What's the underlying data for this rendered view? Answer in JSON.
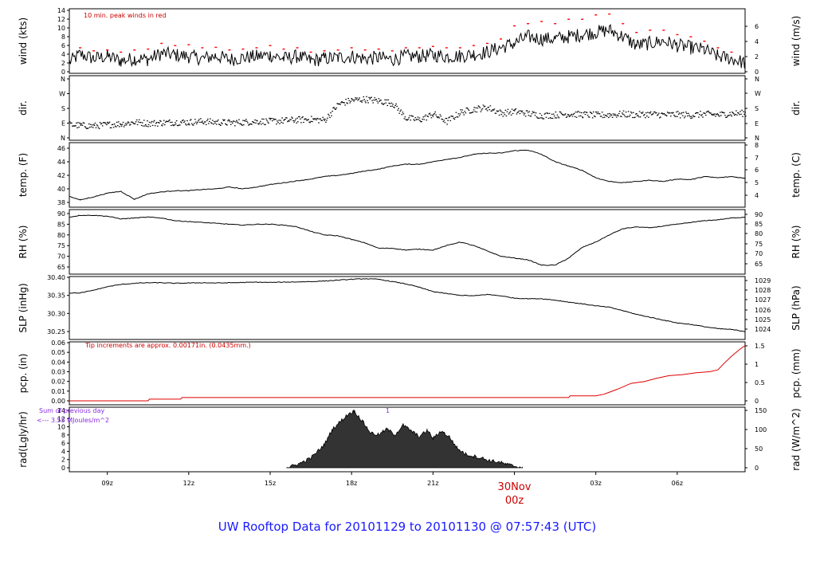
{
  "footer": {
    "title": "UW Rooftop Data for 20101129  to  20101130 @ 07:57:43  (UTC)"
  },
  "x_axis": {
    "tick_labels": [
      "09z",
      "12z",
      "15z",
      "18z",
      "21z",
      "03z",
      "06z"
    ],
    "day_label": "30Nov",
    "day_sub": "00z"
  },
  "colors": {
    "trace": "#000000",
    "peak": "#ff0000",
    "pcp": "#e00000",
    "annotation": "#cc0000",
    "radtext": "#8a2be2",
    "title": "#1a1aff",
    "rad_fill": "#333333"
  },
  "chart_data": [
    {
      "id": "wind",
      "type": "line",
      "ylabel_left": "wind (kts)",
      "ylabel_right": "wind (m/s)",
      "left_ticks": [
        "0",
        "2",
        "4",
        "6",
        "8",
        "10",
        "12",
        "14"
      ],
      "right_ticks": [
        "0",
        "2",
        "4",
        "6"
      ],
      "ylim": [
        0,
        14
      ],
      "annotation": "10 min. peak winds in red",
      "series": [
        {
          "role": "wind",
          "x": [
            7.6,
            8,
            8.5,
            9,
            9.5,
            10,
            10.5,
            11,
            11.5,
            12,
            12.5,
            13,
            13.5,
            14,
            14.5,
            15,
            15.5,
            16,
            16.5,
            17,
            17.5,
            18,
            18.5,
            19,
            19.5,
            20,
            20.5,
            21,
            21.5,
            22,
            22.5,
            23,
            23.5,
            24,
            24.5,
            25,
            25.5,
            26,
            26.5,
            27,
            27.5,
            28,
            28.5,
            29,
            29.5,
            30,
            30.5,
            31,
            31.5,
            32,
            32.5,
            31.6
          ],
          "y": [
            2.2,
            4.0,
            3.0,
            3.5,
            2.5,
            3.0,
            2.8,
            4.2,
            3.8,
            3.5,
            3.0,
            3.6,
            2.8,
            3.2,
            3.5,
            3.8,
            3.0,
            3.5,
            2.5,
            3.0,
            3.2,
            3.5,
            3.0,
            3.2,
            2.8,
            3.5,
            3.5,
            3.8,
            3.5,
            3.6,
            4.0,
            4.5,
            5.5,
            6.5,
            8.0,
            7.5,
            7.5,
            8.0,
            8.5,
            9.0,
            9.5,
            8.0,
            6.0,
            6.5,
            7.0,
            6.0,
            5.5,
            5.0,
            3.5,
            3.0,
            2.0,
            2.5
          ]
        },
        {
          "role": "peak",
          "x": [
            8,
            8.5,
            9,
            9.5,
            10,
            10.5,
            11,
            11.5,
            12,
            12.5,
            13,
            13.5,
            14,
            14.5,
            15,
            15.5,
            16,
            16.5,
            17,
            17.5,
            18,
            18.5,
            19,
            19.5,
            20,
            20.5,
            21,
            21.5,
            22,
            22.5,
            23,
            23.5,
            24,
            24.5,
            25,
            25.5,
            26,
            26.5,
            27,
            27.5,
            28,
            28.5,
            29,
            29.5,
            30,
            30.5,
            31,
            31.5,
            32
          ],
          "y": [
            5.5,
            4.8,
            5.0,
            4.5,
            5.0,
            5.2,
            6.5,
            6.0,
            6.2,
            5.5,
            5.6,
            5.0,
            5.2,
            5.5,
            6.0,
            5.2,
            5.5,
            4.5,
            4.8,
            5.0,
            5.5,
            5.0,
            5.2,
            4.8,
            5.5,
            5.5,
            5.8,
            5.5,
            5.5,
            6.0,
            6.5,
            7.5,
            10.5,
            11.0,
            11.5,
            11.0,
            12.0,
            12.0,
            13.0,
            13.2,
            11.0,
            9.0,
            9.5,
            9.5,
            8.5,
            8.0,
            7.0,
            5.5,
            4.5
          ]
        }
      ]
    },
    {
      "id": "dir",
      "type": "scatter",
      "ylabel_left": "dir.",
      "ylabel_right": "dir.",
      "left_ticks": [
        "N",
        "E",
        "S",
        "W",
        "N"
      ],
      "right_ticks": [
        "N",
        "E",
        "S",
        "W",
        "N"
      ],
      "ylim": [
        0,
        360
      ],
      "x": [
        7.6,
        8,
        8.5,
        9,
        9.5,
        10,
        10.5,
        11,
        11.5,
        12,
        12.5,
        13,
        13.5,
        14,
        14.5,
        15,
        15.5,
        16,
        16.5,
        17,
        17.5,
        18,
        18.5,
        19,
        19.5,
        20,
        20.5,
        21,
        21.5,
        22,
        22.5,
        23,
        23.5,
        24,
        24.5,
        25,
        25.5,
        26,
        26.5,
        27,
        27.5,
        28,
        28.5,
        29,
        29.5,
        30,
        30.5,
        31,
        31.5,
        32,
        32.5
      ],
      "y": [
        80,
        75,
        72,
        80,
        85,
        95,
        88,
        92,
        95,
        95,
        100,
        95,
        92,
        95,
        100,
        100,
        105,
        110,
        112,
        108,
        205,
        230,
        235,
        225,
        210,
        120,
        110,
        145,
        100,
        155,
        175,
        185,
        150,
        160,
        148,
        135,
        140,
        145,
        142,
        138,
        140,
        145,
        140,
        145,
        140,
        142,
        138,
        145,
        140,
        148,
        150
      ]
    },
    {
      "id": "temp",
      "type": "line",
      "ylabel_left": "temp. (F)",
      "ylabel_right": "temp. (C)",
      "left_ticks": [
        "38",
        "40",
        "42",
        "44",
        "46"
      ],
      "right_ticks": [
        "4",
        "5",
        "6",
        "7",
        "8"
      ],
      "ylim": [
        37.8,
        46.6
      ],
      "x": [
        7.6,
        8,
        8.5,
        9,
        9.5,
        10,
        10.5,
        11,
        11.5,
        12,
        12.5,
        13,
        13.5,
        14,
        14.5,
        15,
        15.5,
        16,
        16.5,
        17,
        17.5,
        18,
        18.5,
        19,
        19.5,
        20,
        20.5,
        21,
        21.5,
        22,
        22.5,
        23,
        23.5,
        24,
        24.5,
        25,
        25.5,
        26,
        26.5,
        27,
        27.5,
        28,
        28.5,
        29,
        29.5,
        30,
        30.5,
        31,
        31.5,
        32,
        32.5
      ],
      "y": [
        38.8,
        38.2,
        38.7,
        39.3,
        39.6,
        38.3,
        39.2,
        39.5,
        39.7,
        39.7,
        39.9,
        40.0,
        40.3,
        40.0,
        40.3,
        40.7,
        41.0,
        41.3,
        41.6,
        42.0,
        42.2,
        42.5,
        42.9,
        43.2,
        43.7,
        44.0,
        44.0,
        44.4,
        44.8,
        45.1,
        45.6,
        45.8,
        45.8,
        46.2,
        46.3,
        45.6,
        44.4,
        43.7,
        43.0,
        41.8,
        41.2,
        41.0,
        41.2,
        41.4,
        41.2,
        41.6,
        41.5,
        42.0,
        41.8,
        42.0,
        41.7
      ]
    },
    {
      "id": "rh",
      "type": "line",
      "ylabel_left": "RH (%)",
      "ylabel_right": "RH (%)",
      "left_ticks": [
        "65",
        "70",
        "75",
        "80",
        "85",
        "90"
      ],
      "right_ticks": [
        "65",
        "70",
        "75",
        "80",
        "85",
        "90"
      ],
      "ylim": [
        62,
        92
      ],
      "x": [
        7.6,
        8,
        8.5,
        9,
        9.5,
        10,
        10.5,
        11,
        11.5,
        12,
        12.5,
        13,
        13.5,
        14,
        14.5,
        15,
        15.5,
        16,
        16.5,
        17,
        17.5,
        18,
        18.5,
        19,
        19.5,
        20,
        20.5,
        21,
        21.5,
        22,
        22.5,
        23,
        23.5,
        24,
        24.5,
        25,
        25.5,
        26,
        26.5,
        27,
        27.5,
        28,
        28.5,
        29,
        29.5,
        30,
        30.5,
        31,
        31.5,
        32,
        32.5
      ],
      "y": [
        90,
        91,
        91,
        90.5,
        89,
        89.5,
        90,
        89.5,
        88,
        87.5,
        87,
        86.5,
        86,
        85.5,
        86,
        86,
        85.5,
        84.5,
        82,
        80,
        79.5,
        77.5,
        75.5,
        72.5,
        72.5,
        71.5,
        72,
        71.5,
        74,
        76,
        74,
        71,
        68,
        67,
        66,
        63,
        63,
        67,
        73,
        76,
        80,
        83.5,
        84.5,
        84,
        85,
        86,
        87,
        88,
        88.5,
        89.5,
        90
      ]
    },
    {
      "id": "slp",
      "type": "line",
      "ylabel_left": "SLP (inHg)",
      "ylabel_right": "SLP (hPa)",
      "left_ticks": [
        "30.25",
        "30.30",
        "30.35",
        "30.40"
      ],
      "right_ticks": [
        "1024",
        "1025",
        "1026",
        "1027",
        "1028",
        "1029"
      ],
      "ylim": [
        30.215,
        30.405
      ],
      "x": [
        7.6,
        8,
        8.5,
        9,
        9.5,
        10,
        10.5,
        11,
        11.5,
        12,
        12.5,
        13,
        13.5,
        14,
        14.5,
        15,
        15.5,
        16,
        16.5,
        17,
        17.5,
        18,
        18.5,
        19,
        19.5,
        20,
        20.5,
        21,
        21.5,
        22,
        22.5,
        23,
        23.5,
        24,
        24.5,
        25,
        25.5,
        26,
        26.5,
        27,
        27.5,
        28,
        28.5,
        29,
        29.5,
        30,
        30.5,
        31,
        31.5,
        32,
        32.5
      ],
      "y": [
        30.35,
        30.35,
        30.36,
        30.372,
        30.38,
        30.384,
        30.386,
        30.386,
        30.384,
        30.385,
        30.386,
        30.385,
        30.386,
        30.387,
        30.388,
        30.387,
        30.388,
        30.389,
        30.39,
        30.392,
        30.395,
        30.398,
        30.4,
        30.398,
        30.39,
        30.382,
        30.37,
        30.355,
        30.348,
        30.342,
        30.34,
        30.345,
        30.34,
        30.332,
        30.33,
        30.33,
        30.325,
        30.318,
        30.312,
        30.305,
        30.3,
        30.288,
        30.275,
        30.265,
        30.255,
        30.245,
        30.24,
        30.232,
        30.225,
        30.222,
        30.215
      ]
    },
    {
      "id": "pcp",
      "type": "line",
      "ylabel_left": "pcp. (in)",
      "ylabel_right": "pcp. (mm)",
      "left_ticks": [
        "0.00",
        "0.01",
        "0.02",
        "0.03",
        "0.04",
        "0.05",
        "0.06"
      ],
      "right_ticks": [
        "0",
        "0.5",
        "1",
        "1.5"
      ],
      "ylim": [
        0,
        0.06
      ],
      "annotation": "Tip increments are approx. 0.00171in. (0.0435mm.)",
      "x": [
        7.6,
        10.5,
        10.55,
        11.7,
        11.75,
        26.0,
        26.05,
        27.0,
        27.3,
        27.8,
        28.3,
        28.8,
        29.2,
        29.7,
        30.2,
        30.7,
        31.2,
        31.5,
        31.7,
        32.0,
        32.3,
        32.5
      ],
      "y": [
        0,
        0,
        0.0017,
        0.0017,
        0.0034,
        0.0034,
        0.0051,
        0.0051,
        0.0068,
        0.012,
        0.018,
        0.02,
        0.023,
        0.026,
        0.027,
        0.029,
        0.03,
        0.032,
        0.038,
        0.046,
        0.053,
        0.057
      ]
    },
    {
      "id": "rad",
      "type": "area",
      "ylabel_left": "rad(Lgly/hr)",
      "ylabel_right": "rad (W/m^2)",
      "left_ticks": [
        "0",
        "2",
        "4",
        "6",
        "8",
        "10",
        "12",
        "14"
      ],
      "right_ticks": [
        "0",
        "50",
        "100",
        "150"
      ],
      "ylim": [
        0,
        14.8
      ],
      "annotation": [
        "Sum of previous day",
        "<--- 3.55 MJoules/m^2"
      ],
      "marker": "1",
      "x": [
        15.6,
        16.0,
        16.5,
        17.0,
        17.3,
        17.6,
        17.9,
        18.1,
        18.4,
        18.7,
        19.0,
        19.3,
        19.6,
        19.9,
        20.2,
        20.5,
        20.8,
        21.0,
        21.3,
        21.6,
        21.9,
        22.2,
        22.5,
        22.8,
        23.1,
        23.4,
        23.7,
        24.0,
        24.3
      ],
      "y": [
        0,
        0.8,
        2.5,
        6,
        10,
        12,
        14,
        14.6,
        12,
        9,
        8.5,
        10,
        8.5,
        11,
        9.5,
        8,
        9.7,
        7.5,
        9.5,
        8,
        5,
        3.5,
        3.0,
        2.5,
        1.8,
        1.5,
        0.9,
        0.4,
        0
      ]
    }
  ]
}
